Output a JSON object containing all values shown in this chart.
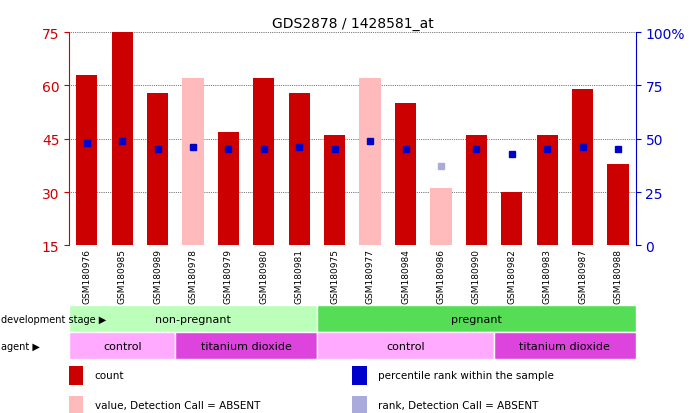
{
  "title": "GDS2878 / 1428581_at",
  "samples": [
    "GSM180976",
    "GSM180985",
    "GSM180989",
    "GSM180978",
    "GSM180979",
    "GSM180980",
    "GSM180981",
    "GSM180975",
    "GSM180977",
    "GSM180984",
    "GSM180986",
    "GSM180990",
    "GSM180982",
    "GSM180983",
    "GSM180987",
    "GSM180988"
  ],
  "bar_heights": [
    63,
    75,
    58,
    62,
    47,
    62,
    58,
    46,
    62,
    55,
    31,
    46,
    30,
    46,
    59,
    38
  ],
  "bar_absent": [
    false,
    false,
    false,
    true,
    false,
    false,
    false,
    false,
    true,
    false,
    true,
    false,
    false,
    false,
    false,
    false
  ],
  "percentile_ranks": [
    48,
    49,
    45,
    46,
    45,
    45,
    46,
    45,
    49,
    45,
    37,
    45,
    43,
    45,
    46,
    45
  ],
  "rank_absent": [
    false,
    false,
    false,
    false,
    false,
    false,
    false,
    false,
    false,
    false,
    true,
    false,
    false,
    false,
    false,
    false
  ],
  "ylim_left": [
    15,
    75
  ],
  "ylim_right": [
    0,
    100
  ],
  "yticks_left": [
    15,
    30,
    45,
    60,
    75
  ],
  "yticks_right": [
    0,
    25,
    50,
    75,
    100
  ],
  "bar_color_present": "#cc0000",
  "bar_color_absent": "#ffbbbb",
  "rank_color_present": "#0000cc",
  "rank_color_absent": "#aaaadd",
  "dev_stage_colors": {
    "non_pregnant": "#bbffbb",
    "pregnant": "#55dd55"
  },
  "agent_colors": {
    "control": "#ffaaff",
    "titanium_dioxide": "#dd44dd"
  },
  "legend_items": [
    {
      "label": "count",
      "color": "#cc0000"
    },
    {
      "label": "percentile rank within the sample",
      "color": "#0000cc"
    },
    {
      "label": "value, Detection Call = ABSENT",
      "color": "#ffbbbb"
    },
    {
      "label": "rank, Detection Call = ABSENT",
      "color": "#aaaadd"
    }
  ],
  "tick_bg_color": "#cccccc"
}
